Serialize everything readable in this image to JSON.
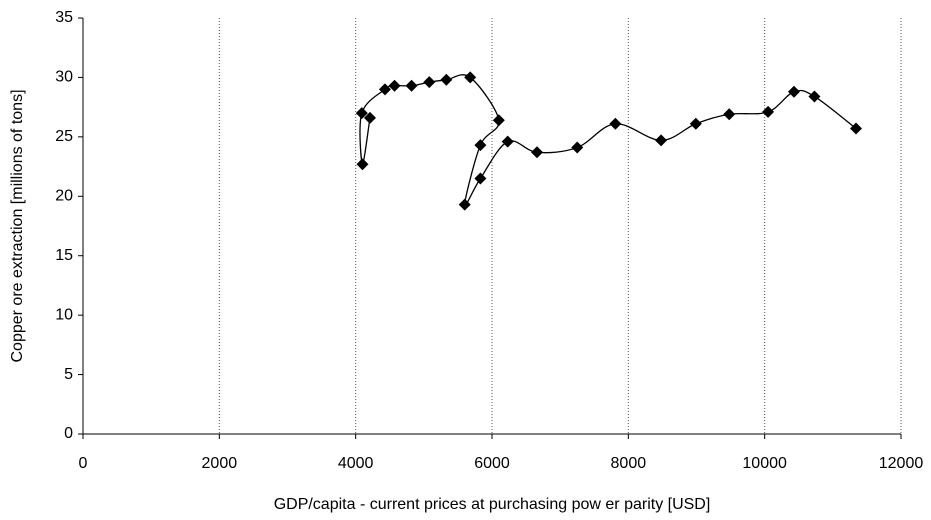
{
  "chart_data": {
    "type": "scatter",
    "xlabel": "GDP/capita - current prices at purchasing pow er parity [USD]",
    "ylabel": "Copper ore extraction [millions of tons]",
    "x": [
      4210,
      4100,
      4090,
      4430,
      4570,
      4820,
      5080,
      5330,
      5680,
      6100,
      5830,
      5600,
      5830,
      6230,
      6660,
      7250,
      7810,
      8480,
      8990,
      9480,
      10050,
      10430,
      10730,
      11340
    ],
    "values": [
      26.6,
      22.7,
      27.0,
      29.0,
      29.3,
      29.3,
      29.6,
      29.8,
      30.0,
      26.4,
      24.3,
      19.3,
      21.5,
      24.6,
      23.7,
      24.1,
      26.1,
      24.7,
      26.1,
      26.9,
      27.1,
      28.8,
      28.4,
      25.7
    ],
    "color": "#000000",
    "xlim": [
      0,
      12000
    ],
    "xticks": [
      0,
      2000,
      4000,
      6000,
      8000,
      10000,
      12000
    ],
    "ylim": [
      0,
      35
    ],
    "yticks": [
      0,
      5,
      10,
      15,
      20,
      25,
      30,
      35
    ],
    "grid": true
  }
}
